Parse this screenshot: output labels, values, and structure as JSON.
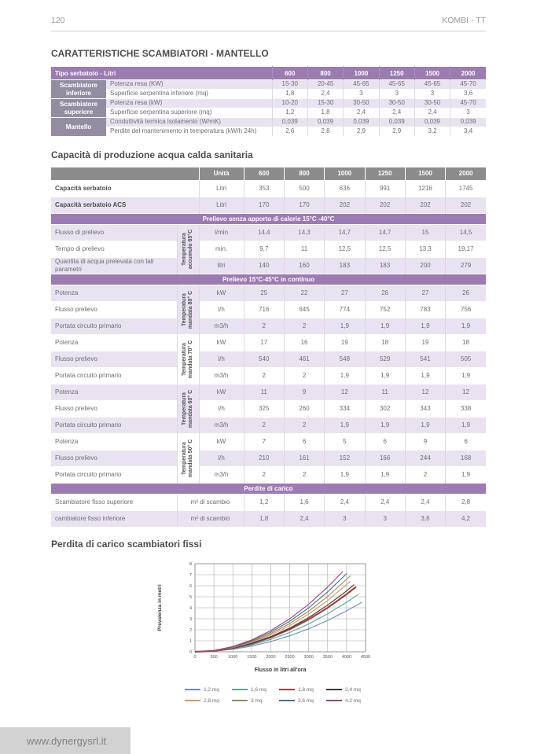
{
  "page": {
    "number": "120",
    "brand": "KOMBI - TT",
    "footer_url": "www.dynergysrl.it"
  },
  "section1": {
    "title": "CARATTERISTICHE SCAMBIATORI - MANTELLO",
    "table": {
      "header_label": "Tipo serbatoio - Litri",
      "columns": [
        "600",
        "800",
        "1000",
        "1250",
        "1500",
        "2000"
      ],
      "groups": [
        {
          "name": "Scambiatore inferiore",
          "rows": [
            {
              "label": "Potenza resa (KW)",
              "values": [
                "15-30",
                "20-45",
                "45-65",
                "45-65",
                "45-65",
                "45-70"
              ]
            },
            {
              "label": "Superficie serpentina inferiore (mq)",
              "values": [
                "1,8",
                "2,4",
                "3",
                "3",
                "3",
                "3,6"
              ]
            }
          ]
        },
        {
          "name": "Scambiatore superiore",
          "rows": [
            {
              "label": "Potenza resa (kW)",
              "values": [
                "10-20",
                "15-30",
                "30-50",
                "30-50",
                "30-50",
                "45-70"
              ]
            },
            {
              "label": "Superficie serpentina superiore (mq)",
              "values": [
                "1,2",
                "1,8",
                "2,4",
                "2,4",
                "2,4",
                "3"
              ]
            }
          ]
        },
        {
          "name": "Mantello",
          "rows": [
            {
              "label": "Conduttività termica isolamento (W/mK)",
              "values": [
                "0,039",
                "0,039",
                "0,039",
                "0,039",
                "0,039",
                "0,039"
              ]
            },
            {
              "label": "Perdite del mantenimento in temperatura (kW/h 24h)",
              "values": [
                "2,6",
                "2,8",
                "2,9",
                "2,9",
                "3,2",
                "3,4"
              ]
            }
          ]
        }
      ]
    }
  },
  "section2": {
    "title": "Capacità di produzione acqua calda sanitaria",
    "table": {
      "unit_header": "Unità",
      "columns": [
        "600",
        "800",
        "1000",
        "1250",
        "1500",
        "2000"
      ],
      "capacity_rows": [
        {
          "label": "Capacità serbatoio",
          "unit": "Litri",
          "values": [
            "353",
            "500",
            "636",
            "991",
            "1216",
            "1745"
          ]
        },
        {
          "label": "Capacità serbatoio ACS",
          "unit": "Litri",
          "values": [
            "170",
            "170",
            "202",
            "202",
            "202",
            "202"
          ]
        }
      ],
      "band1": "Prelievo senza apporto di calorie 15°C -40°C",
      "accumulo_group": {
        "vertical_label": "Temperatura accumulo 65°C",
        "rows": [
          {
            "label": "Flusso di prelievo",
            "unit": "l/min",
            "values": [
              "14,4",
              "14,3",
              "14,7",
              "14,7",
              "15",
              "14,5"
            ]
          },
          {
            "label": "Tempo di prelievo",
            "unit": "min.",
            "values": [
              "9,7",
              "11",
              "12,5",
              "12,5",
              "13,3",
              "19,17"
            ]
          },
          {
            "label": "Quantita di acqua prelevata con tali parametri",
            "unit": "litri",
            "values": [
              "140",
              "160",
              "183",
              "183",
              "200",
              "279"
            ]
          }
        ]
      },
      "band2": "Prelievo 15°C-45°C in continuo",
      "mandata_groups": [
        {
          "vertical_label": "Temperatura mandata 80° C",
          "rows": [
            {
              "label": "Potenza",
              "unit": "kW",
              "values": [
                "25",
                "22",
                "27",
                "26",
                "27",
                "26"
              ]
            },
            {
              "label": "Flusso prelievo",
              "unit": "l/h",
              "values": [
                "716",
                "645",
                "774",
                "752",
                "783",
                "756"
              ]
            },
            {
              "label": "Portata circuito primario",
              "unit": "m3/h",
              "values": [
                "2",
                "2",
                "1,9",
                "1,9",
                "1,9",
                "1,9"
              ]
            }
          ]
        },
        {
          "vertical_label": "Temperatura mandata 70° C",
          "rows": [
            {
              "label": "Potenza",
              "unit": "kW",
              "values": [
                "17",
                "16",
                "19",
                "18",
                "19",
                "18"
              ]
            },
            {
              "label": "Flusso prelievo",
              "unit": "l/h",
              "values": [
                "540",
                "461",
                "548",
                "529",
                "541",
                "505"
              ]
            },
            {
              "label": "Portata circuito primario",
              "unit": "m3/h",
              "values": [
                "2",
                "2",
                "1,9",
                "1,9",
                "1,9",
                "1,9"
              ]
            }
          ]
        },
        {
          "vertical_label": "Temperatura mandata 60° C",
          "rows": [
            {
              "label": "Potenza",
              "unit": "kW",
              "values": [
                "11",
                "9",
                "12",
                "11",
                "12",
                "12"
              ]
            },
            {
              "label": "Flusso prelievo",
              "unit": "l/h",
              "values": [
                "325",
                "260",
                "334",
                "302",
                "343",
                "338"
              ]
            },
            {
              "label": "Portata circuito primario",
              "unit": "m3/h",
              "values": [
                "2",
                "2",
                "1,9",
                "1,9",
                "1,9",
                "1,9"
              ]
            }
          ]
        },
        {
          "vertical_label": "Temperatura mandata 50° C",
          "rows": [
            {
              "label": "Potenza",
              "unit": "kW",
              "values": [
                "7",
                "6",
                "5",
                "6",
                "9",
                "6"
              ]
            },
            {
              "label": "Flusso prelievo",
              "unit": "l/h",
              "values": [
                "210",
                "161",
                "152",
                "166",
                "244",
                "168"
              ]
            },
            {
              "label": "Portata circuito primario",
              "unit": "m3/h",
              "values": [
                "2",
                "2",
                "1,9",
                "1,9",
                "2",
                "1,9"
              ]
            }
          ]
        }
      ],
      "band3": "Perdite di carico",
      "perdite_rows": [
        {
          "label": "Scambiatore fisso superiore",
          "unit": "m² di scambio",
          "values": [
            "1,2",
            "1,6",
            "2,4",
            "2,4",
            "2,4",
            "2,8"
          ]
        },
        {
          "label": "cambiatore fisso inferiore",
          "unit": "m² di scambio",
          "values": [
            "1,8",
            "2,4",
            "3",
            "3",
            "3,6",
            "4,2"
          ]
        }
      ]
    }
  },
  "section3": {
    "title": "Perdita di carico scambiatori fissi"
  },
  "chart_data": {
    "type": "line",
    "title": "",
    "xlabel": "Flusso in litri all'ora",
    "ylabel": "Prevalenza in metri",
    "xlim": [
      0,
      4500
    ],
    "ylim": [
      0,
      8
    ],
    "x_ticks": [
      0,
      500,
      1000,
      1500,
      2000,
      2500,
      3000,
      3500,
      4000,
      4500
    ],
    "y_ticks": [
      0,
      1,
      2,
      3,
      4,
      5,
      6,
      7,
      8
    ],
    "grid": true,
    "legend_position": "bottom",
    "series": [
      {
        "name": "1,2 mq",
        "color": "#6B8CBE",
        "width": 1.1,
        "points": [
          [
            0,
            0
          ],
          [
            500,
            0.06
          ],
          [
            1000,
            0.23
          ],
          [
            1500,
            0.52
          ],
          [
            2000,
            0.93
          ],
          [
            2500,
            1.45
          ],
          [
            3000,
            2.09
          ],
          [
            3500,
            2.85
          ],
          [
            4000,
            3.72
          ],
          [
            4400,
            4.5
          ]
        ]
      },
      {
        "name": "1,6 mq",
        "color": "#5BA88F",
        "width": 1.1,
        "points": [
          [
            0,
            0
          ],
          [
            500,
            0.07
          ],
          [
            1000,
            0.28
          ],
          [
            1500,
            0.63
          ],
          [
            2000,
            1.13
          ],
          [
            2500,
            1.76
          ],
          [
            3000,
            2.53
          ],
          [
            3500,
            3.45
          ],
          [
            4000,
            4.5
          ],
          [
            4300,
            5.2
          ]
        ]
      },
      {
        "name": "1,8 mq",
        "color": "#A2403C",
        "width": 2.2,
        "points": [
          [
            0,
            0
          ],
          [
            500,
            0.08
          ],
          [
            1000,
            0.33
          ],
          [
            1500,
            0.74
          ],
          [
            2000,
            1.31
          ],
          [
            2500,
            2.04
          ],
          [
            3000,
            2.94
          ],
          [
            3500,
            4.0
          ],
          [
            4000,
            5.23
          ],
          [
            4250,
            5.9
          ]
        ]
      },
      {
        "name": "2,4 mq",
        "color": "#3F3A3A",
        "width": 1.1,
        "points": [
          [
            0,
            0
          ],
          [
            500,
            0.09
          ],
          [
            1000,
            0.35
          ],
          [
            1500,
            0.78
          ],
          [
            2000,
            1.38
          ],
          [
            2500,
            2.16
          ],
          [
            3000,
            3.11
          ],
          [
            3500,
            4.24
          ],
          [
            4000,
            5.53
          ],
          [
            4200,
            6.1
          ]
        ]
      },
      {
        "name": "2,8 mq",
        "color": "#E0935B",
        "width": 1.1,
        "points": [
          [
            0,
            0
          ],
          [
            500,
            0.1
          ],
          [
            1000,
            0.38
          ],
          [
            1500,
            0.86
          ],
          [
            2000,
            1.52
          ],
          [
            2500,
            2.38
          ],
          [
            3000,
            3.43
          ],
          [
            3500,
            4.66
          ],
          [
            4100,
            6.4
          ]
        ]
      },
      {
        "name": "3 mq",
        "color": "#8F8F52",
        "width": 1.1,
        "points": [
          [
            0,
            0
          ],
          [
            500,
            0.1
          ],
          [
            1000,
            0.41
          ],
          [
            1500,
            0.92
          ],
          [
            2000,
            1.64
          ],
          [
            2500,
            2.57
          ],
          [
            3000,
            3.69
          ],
          [
            3500,
            5.03
          ],
          [
            4100,
            6.9
          ]
        ]
      },
      {
        "name": "3,6 mq",
        "color": "#4A69A8",
        "width": 1.1,
        "points": [
          [
            0,
            0
          ],
          [
            500,
            0.11
          ],
          [
            1000,
            0.44
          ],
          [
            1500,
            1.0
          ],
          [
            2000,
            1.78
          ],
          [
            2500,
            2.77
          ],
          [
            3000,
            3.99
          ],
          [
            3500,
            5.44
          ],
          [
            4000,
            7.1
          ]
        ]
      },
      {
        "name": "4,2 mq",
        "color": "#9B4471",
        "width": 1.1,
        "points": [
          [
            0,
            0
          ],
          [
            500,
            0.12
          ],
          [
            1000,
            0.48
          ],
          [
            1500,
            1.08
          ],
          [
            2000,
            1.92
          ],
          [
            2500,
            3.0
          ],
          [
            3000,
            4.32
          ],
          [
            3500,
            5.88
          ],
          [
            3900,
            7.3
          ]
        ]
      }
    ]
  }
}
